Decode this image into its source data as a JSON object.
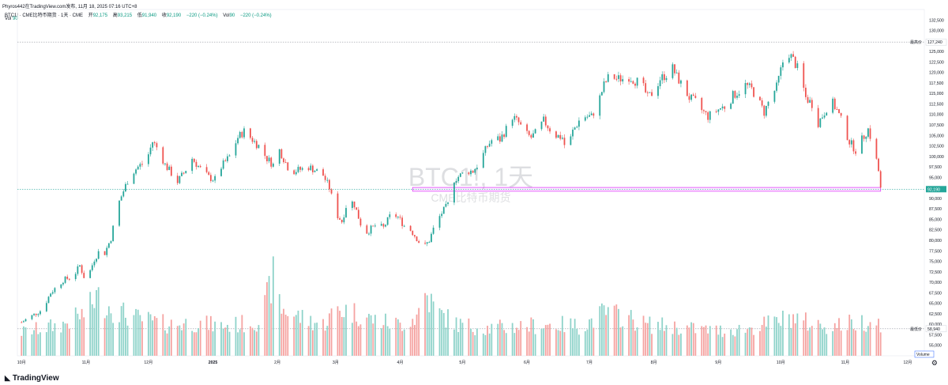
{
  "header": {
    "published_line": "Phyros442在TradingView.com发布, 11月 18, 2025 07:16 UTC+8",
    "symbol_line": "BTC1! · CME比特币期货 · 1天 · CME",
    "ohlc": [
      {
        "label": "开",
        "value": "92,175"
      },
      {
        "label": "高",
        "value": "93,215"
      },
      {
        "label": "低",
        "value": "91,940"
      },
      {
        "label": "收",
        "value": "92,190"
      },
      {
        "label": "",
        "value": "−220 (−0.24%)"
      },
      {
        "label": "Vol",
        "value": "90"
      },
      {
        "label": "",
        "value": "−220 (−0.24%)"
      }
    ],
    "vol_line_label": "Vol",
    "vol_line_value": "90"
  },
  "watermark": {
    "title": "BTC1!, 1天",
    "subtitle": "CME比特币期货"
  },
  "footer": {
    "brand": "TradingView",
    "logo_icon": "tradingview-logo-icon",
    "settings_icon": "gear-icon"
  },
  "colors": {
    "up": "#26a69a",
    "down": "#ef5350",
    "up_volume": "#8fd3ca",
    "down_volume": "#f5a3a1",
    "highlight_box": "#e040fb",
    "grid": "#f0f3fa"
  },
  "chart_data": {
    "type": "candlestick",
    "price_axis": {
      "ylim": [
        52500,
        135000
      ],
      "ticks": [
        "132,500",
        "130,000",
        "127,500",
        "125,000",
        "122,500",
        "120,000",
        "117,500",
        "115,000",
        "112,500",
        "110,000",
        "107,500",
        "105,000",
        "102,500",
        "100,000",
        "97,500",
        "95,000",
        "92,500",
        "90,000",
        "87,500",
        "85,000",
        "82,500",
        "80,000",
        "77,500",
        "75,000",
        "72,500",
        "70,000",
        "67,500",
        "65,000",
        "62,500",
        "60,000",
        "57,500",
        "55,000"
      ],
      "markers": [
        {
          "label": "最高价",
          "value": "127,240",
          "price": 127240
        },
        {
          "label": "",
          "value": "92,190",
          "price": 92190,
          "style": "last"
        },
        {
          "label": "最低价",
          "value": "58,940",
          "price": 58940
        }
      ]
    },
    "time_axis": {
      "labels": [
        {
          "text": "10月",
          "day": 0
        },
        {
          "text": "11月",
          "day": 31
        },
        {
          "text": "12月",
          "day": 61
        },
        {
          "text": "2025",
          "day": 92
        },
        {
          "text": "2月",
          "day": 123
        },
        {
          "text": "3月",
          "day": 151
        },
        {
          "text": "4月",
          "day": 182
        },
        {
          "text": "5月",
          "day": 212
        },
        {
          "text": "6月",
          "day": 243
        },
        {
          "text": "7月",
          "day": 273
        },
        {
          "text": "8月",
          "day": 304
        },
        {
          "text": "9月",
          "day": 335
        },
        {
          "text": "10月",
          "day": 365
        },
        {
          "text": "11月",
          "day": 396
        },
        {
          "text": "12月",
          "day": 426
        }
      ],
      "range_days": [
        -2,
        434
      ]
    },
    "volume_label": "Volume",
    "highlight_range": {
      "from_day": 188,
      "to_day": 413,
      "low": 91700,
      "high": 92600
    },
    "price_path": [
      [
        0,
        60500
      ],
      [
        5,
        62000
      ],
      [
        10,
        63500
      ],
      [
        14,
        67500
      ],
      [
        20,
        70500
      ],
      [
        25,
        71500
      ],
      [
        28,
        74000
      ],
      [
        31,
        70000
      ],
      [
        35,
        75500
      ],
      [
        38,
        78000
      ],
      [
        40,
        77000
      ],
      [
        43,
        80500
      ],
      [
        46,
        88000
      ],
      [
        48,
        90500
      ],
      [
        52,
        95500
      ],
      [
        56,
        97500
      ],
      [
        60,
        99000
      ],
      [
        63,
        103500
      ],
      [
        66,
        101500
      ],
      [
        69,
        98000
      ],
      [
        72,
        96000
      ],
      [
        75,
        94000
      ],
      [
        78,
        96000
      ],
      [
        82,
        99500
      ],
      [
        86,
        97000
      ],
      [
        90,
        95000
      ],
      [
        93,
        94500
      ],
      [
        96,
        97500
      ],
      [
        100,
        100000
      ],
      [
        104,
        104500
      ],
      [
        107,
        106000
      ],
      [
        111,
        104000
      ],
      [
        114,
        102500
      ],
      [
        118,
        99500
      ],
      [
        121,
        98000
      ],
      [
        124,
        101500
      ],
      [
        128,
        97500
      ],
      [
        131,
        96500
      ],
      [
        135,
        97000
      ],
      [
        138,
        97500
      ],
      [
        142,
        96500
      ],
      [
        145,
        95500
      ],
      [
        148,
        92500
      ],
      [
        151,
        86500
      ],
      [
        154,
        84500
      ],
      [
        157,
        90000
      ],
      [
        160,
        88500
      ],
      [
        163,
        84000
      ],
      [
        166,
        82000
      ],
      [
        170,
        83500
      ],
      [
        174,
        83000
      ],
      [
        178,
        86500
      ],
      [
        181,
        85500
      ],
      [
        184,
        83500
      ],
      [
        187,
        82500
      ],
      [
        190,
        80500
      ],
      [
        193,
        78000
      ],
      [
        196,
        80000
      ],
      [
        199,
        84000
      ],
      [
        202,
        86500
      ],
      [
        205,
        88500
      ],
      [
        208,
        94500
      ],
      [
        211,
        95500
      ],
      [
        214,
        96500
      ],
      [
        217,
        96500
      ],
      [
        220,
        98500
      ],
      [
        224,
        102500
      ],
      [
        227,
        104500
      ],
      [
        230,
        104000
      ],
      [
        233,
        106500
      ],
      [
        236,
        109500
      ],
      [
        239,
        108000
      ],
      [
        242,
        105500
      ],
      [
        245,
        104500
      ],
      [
        248,
        106000
      ],
      [
        251,
        108500
      ],
      [
        254,
        106500
      ],
      [
        257,
        105000
      ],
      [
        260,
        104500
      ],
      [
        262,
        101000
      ],
      [
        265,
        106000
      ],
      [
        268,
        108500
      ],
      [
        271,
        109500
      ],
      [
        274,
        109500
      ],
      [
        277,
        112500
      ],
      [
        280,
        117000
      ],
      [
        283,
        119500
      ],
      [
        286,
        118500
      ],
      [
        289,
        118500
      ],
      [
        292,
        119000
      ],
      [
        295,
        118000
      ],
      [
        298,
        117500
      ],
      [
        301,
        114000
      ],
      [
        304,
        115500
      ],
      [
        307,
        118500
      ],
      [
        310,
        119500
      ],
      [
        313,
        121000
      ],
      [
        315,
        119000
      ],
      [
        318,
        116500
      ],
      [
        321,
        114000
      ],
      [
        324,
        113000
      ],
      [
        327,
        111000
      ],
      [
        330,
        109500
      ],
      [
        333,
        110500
      ],
      [
        336,
        111500
      ],
      [
        339,
        112000
      ],
      [
        342,
        114500
      ],
      [
        345,
        115500
      ],
      [
        348,
        117000
      ],
      [
        351,
        116000
      ],
      [
        354,
        113500
      ],
      [
        357,
        110500
      ],
      [
        360,
        114000
      ],
      [
        363,
        116500
      ],
      [
        366,
        122500
      ],
      [
        369,
        124500
      ],
      [
        371,
        123000
      ],
      [
        374,
        120000
      ],
      [
        377,
        114000
      ],
      [
        380,
        112500
      ],
      [
        383,
        108000
      ],
      [
        386,
        110500
      ],
      [
        389,
        113500
      ],
      [
        392,
        111000
      ],
      [
        395,
        107500
      ],
      [
        398,
        103500
      ],
      [
        401,
        101500
      ],
      [
        404,
        104000
      ],
      [
        407,
        106500
      ],
      [
        410,
        101500
      ],
      [
        412,
        96500
      ],
      [
        413,
        92190
      ]
    ],
    "volume_path": [
      [
        0,
        30
      ],
      [
        20,
        40
      ],
      [
        31,
        55
      ],
      [
        36,
        75
      ],
      [
        45,
        58
      ],
      [
        55,
        48
      ],
      [
        70,
        40
      ],
      [
        85,
        42
      ],
      [
        95,
        38
      ],
      [
        105,
        40
      ],
      [
        115,
        45
      ],
      [
        121,
        100
      ],
      [
        125,
        60
      ],
      [
        135,
        48
      ],
      [
        145,
        40
      ],
      [
        152,
        60
      ],
      [
        160,
        55
      ],
      [
        170,
        45
      ],
      [
        182,
        40
      ],
      [
        190,
        50
      ],
      [
        194,
        80
      ],
      [
        200,
        55
      ],
      [
        210,
        40
      ],
      [
        225,
        35
      ],
      [
        240,
        38
      ],
      [
        255,
        40
      ],
      [
        270,
        38
      ],
      [
        280,
        55
      ],
      [
        290,
        50
      ],
      [
        300,
        40
      ],
      [
        310,
        38
      ],
      [
        320,
        35
      ],
      [
        335,
        32
      ],
      [
        350,
        35
      ],
      [
        365,
        45
      ],
      [
        370,
        50
      ],
      [
        380,
        40
      ],
      [
        390,
        38
      ],
      [
        400,
        42
      ],
      [
        410,
        45
      ],
      [
        413,
        42
      ]
    ],
    "volume_max_ref": 100
  }
}
